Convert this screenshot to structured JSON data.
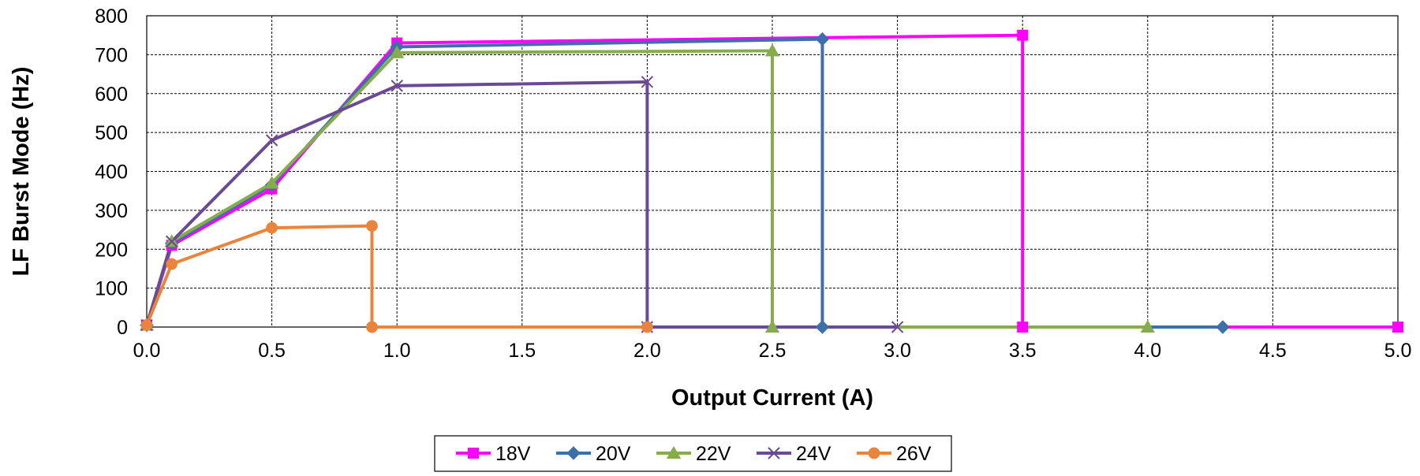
{
  "chart_data": {
    "type": "line",
    "xlabel": "Output Current (A)",
    "ylabel": "LF Burst Mode (Hz)",
    "xlim": [
      0,
      5
    ],
    "ylim": [
      0,
      800
    ],
    "xticks": [
      "0.0",
      "0.5",
      "1.0",
      "1.5",
      "2.0",
      "2.5",
      "3.0",
      "3.5",
      "4.0",
      "4.5",
      "5.0"
    ],
    "yticks": [
      "0",
      "100",
      "200",
      "300",
      "400",
      "500",
      "600",
      "700",
      "800"
    ],
    "grid": true,
    "legend_position": "bottom",
    "series": [
      {
        "name": "18V",
        "color": "#ff00ff",
        "marker": "square",
        "x": [
          0,
          0.1,
          0.5,
          1.0,
          3.5,
          3.5,
          5.0
        ],
        "y": [
          5,
          210,
          355,
          730,
          750,
          0,
          0
        ]
      },
      {
        "name": "20V",
        "color": "#3d6fa8",
        "marker": "diamond",
        "x": [
          0,
          0.1,
          0.5,
          1.0,
          2.7,
          2.7,
          4.3
        ],
        "y": [
          5,
          215,
          365,
          720,
          740,
          0,
          0
        ]
      },
      {
        "name": "22V",
        "color": "#86ac4c",
        "marker": "triangle",
        "x": [
          0,
          0.1,
          0.5,
          1.0,
          2.5,
          2.5,
          4.0
        ],
        "y": [
          5,
          220,
          370,
          705,
          710,
          0,
          0
        ]
      },
      {
        "name": "24V",
        "color": "#6b4a94",
        "marker": "x",
        "x": [
          0,
          0.1,
          0.5,
          1.0,
          2.0,
          2.0,
          3.0
        ],
        "y": [
          5,
          220,
          480,
          620,
          630,
          0,
          0
        ]
      },
      {
        "name": "26V",
        "color": "#e8843c",
        "marker": "circle",
        "x": [
          0,
          0.1,
          0.5,
          0.9,
          0.9,
          2.0
        ],
        "y": [
          5,
          162,
          255,
          260,
          0,
          0
        ]
      }
    ]
  }
}
